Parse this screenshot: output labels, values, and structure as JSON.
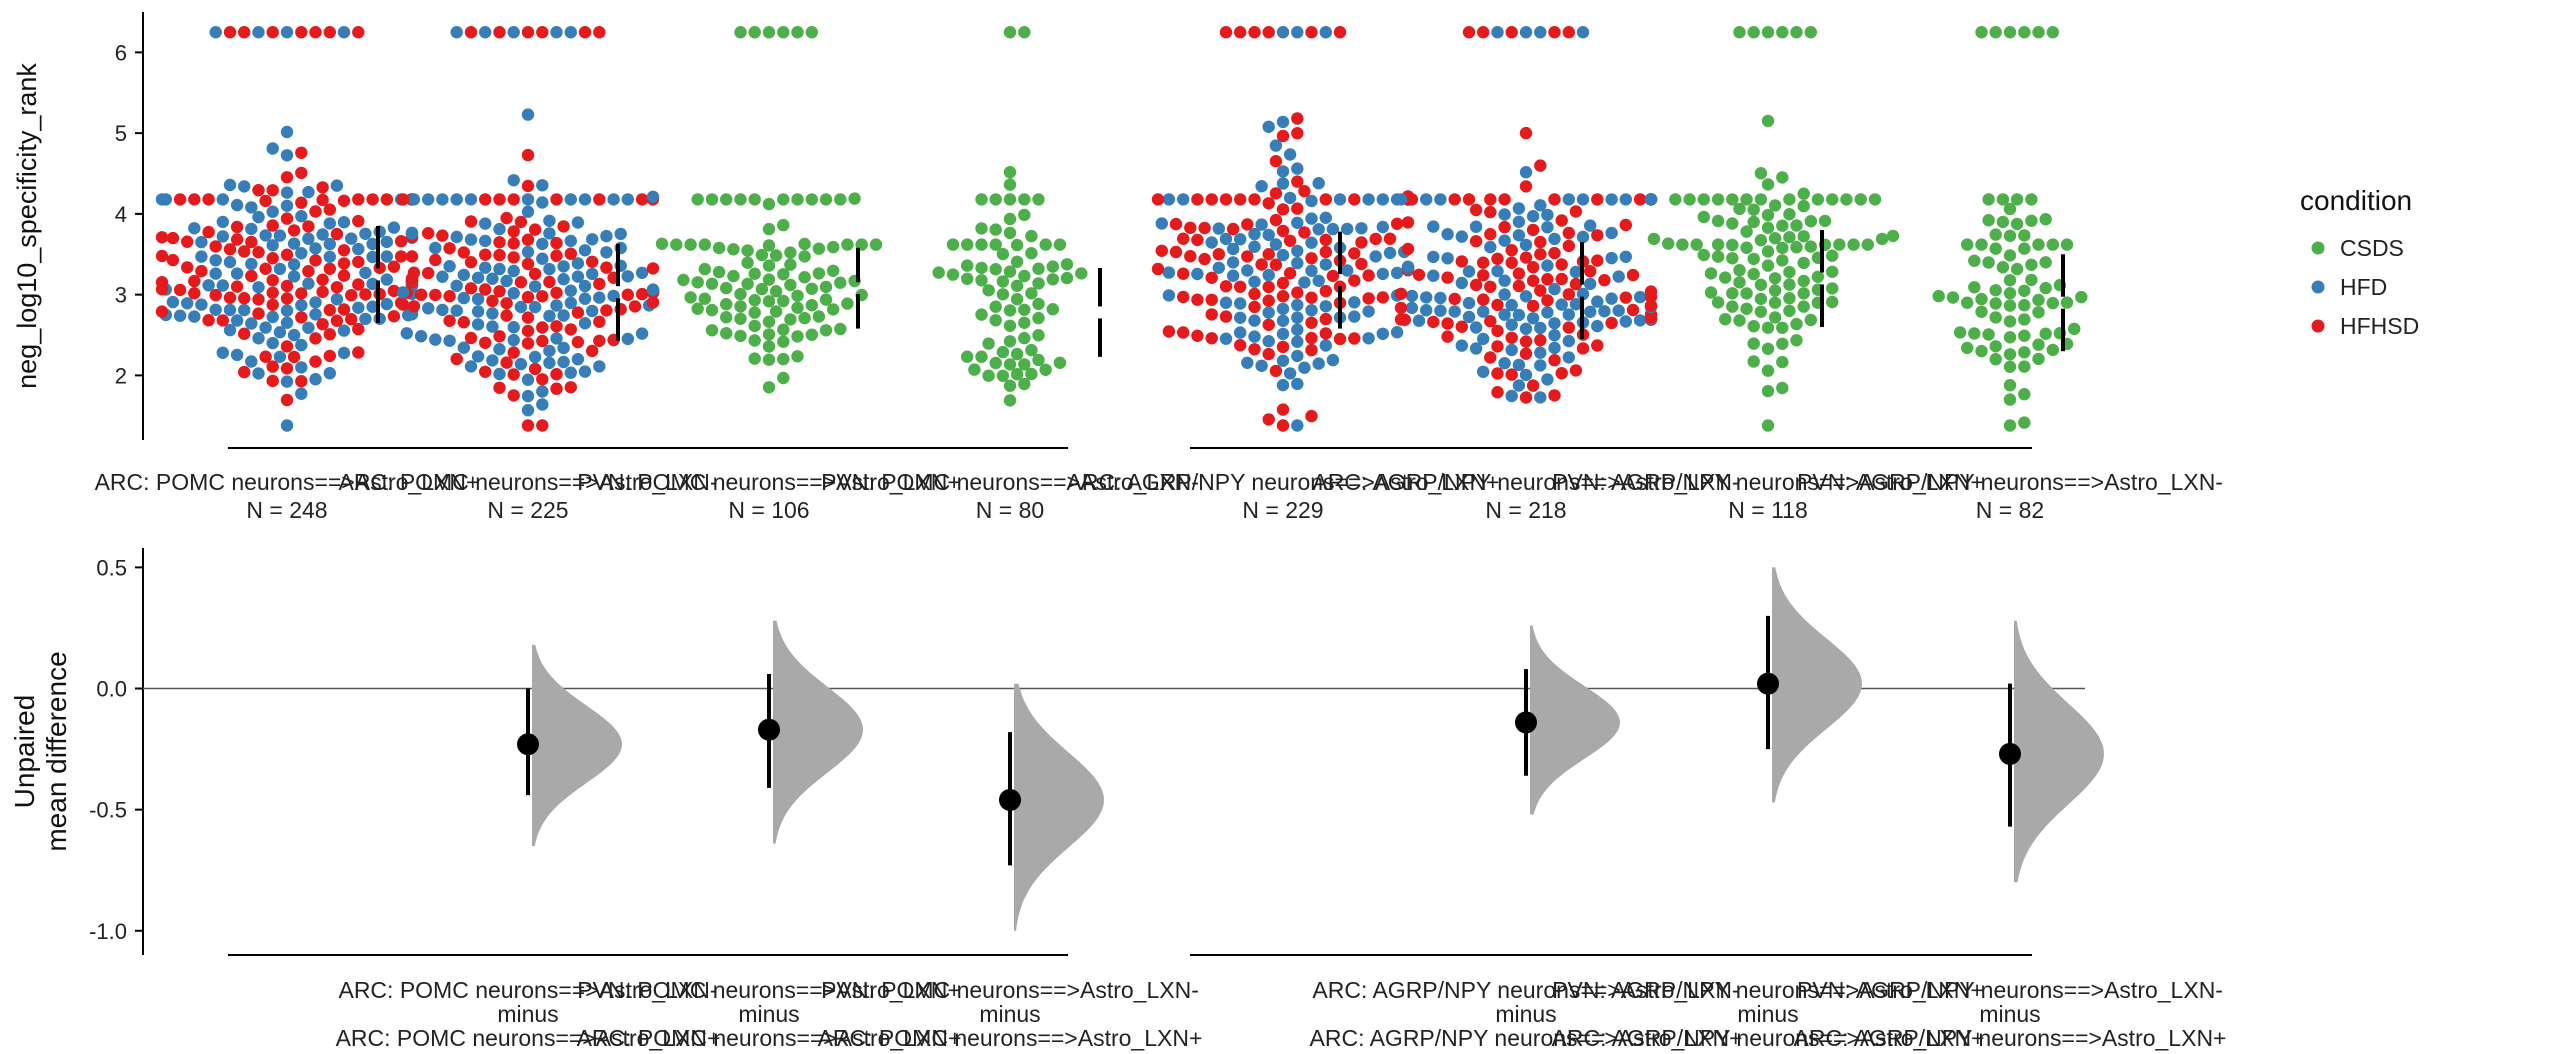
{
  "chart_data": [
    {
      "type": "scatter",
      "subtype": "swarm",
      "ylabel": "neg_log10_specificity_rank",
      "ylim": [
        1.2,
        6.5
      ],
      "yticks": [
        "2",
        "3",
        "4",
        "5",
        "6"
      ],
      "yticks_values": [
        2,
        3,
        4,
        5,
        6
      ],
      "grid": false,
      "groups": [
        {
          "name": "ARC: POMC neurons==>Astro_LXN+",
          "n_label": "N = 248",
          "n": 248,
          "palette": "mixed",
          "mean": 3.25,
          "sd": 0.6
        },
        {
          "name": "ARC: POMC neurons==>Astro_LXN-",
          "n_label": "N = 225",
          "n": 225,
          "palette": "mixed",
          "mean": 3.03,
          "sd": 0.6
        },
        {
          "name": "PVN: POMC neurons==>Astro_LXN+",
          "n_label": "N = 106",
          "n": 106,
          "palette": "green",
          "mean": 3.08,
          "sd": 0.5
        },
        {
          "name": "PVN: POMC neurons==>Astro_LXN-",
          "n_label": "N = 80",
          "n": 80,
          "palette": "green",
          "mean": 2.78,
          "sd": 0.55
        },
        {
          "name": "ARC: AGRP/NPY neurons==>Astro_LXN+",
          "n_label": "N = 229",
          "n": 229,
          "palette": "mixed",
          "mean": 3.18,
          "sd": 0.6
        },
        {
          "name": "ARC: AGRP/NPY neurons==>Astro_LXN-",
          "n_label": "N = 218",
          "n": 218,
          "palette": "mixed",
          "mean": 3.05,
          "sd": 0.6
        },
        {
          "name": "PVN: AGRP/NPY neurons==>Astro_LXN+",
          "n_label": "N = 118",
          "n": 118,
          "palette": "green",
          "mean": 3.2,
          "sd": 0.6
        },
        {
          "name": "PVN: AGRP/NPY neurons==>Astro_LXN-",
          "n_label": "N = 82",
          "n": 82,
          "palette": "green",
          "mean": 2.9,
          "sd": 0.6
        }
      ],
      "legend": {
        "title": "condition",
        "placement": "right",
        "entries": [
          {
            "name": "CSDS",
            "color": "#4daf4a"
          },
          {
            "name": "HFD",
            "color": "#377eb8"
          },
          {
            "name": "HFHSD",
            "color": "#e41a1c"
          }
        ]
      }
    },
    {
      "type": "scatter",
      "subtype": "estimation",
      "ylabel_lines": [
        "Unpaired",
        "mean difference"
      ],
      "ylim": [
        -1.1,
        0.58
      ],
      "yticks": [
        "-1.0",
        "-0.5",
        "0.0",
        "0.5"
      ],
      "yticks_values": [
        -1.0,
        -0.5,
        0.0,
        0.5
      ],
      "reference_line": 0,
      "comparisons": [
        {
          "group_index": 1,
          "label_top": "ARC: POMC neurons==>Astro_LXN-",
          "label_mid": "minus",
          "label_bottom": "ARC: POMC neurons==>Astro_LXN+",
          "estimate": -0.23,
          "ci": [
            -0.44,
            0.0
          ],
          "dist_range": [
            -0.65,
            0.18
          ]
        },
        {
          "group_index": 2,
          "label_top": "PVN: POMC neurons==>Astro_LXN+",
          "label_mid": "minus",
          "label_bottom": "ARC: POMC neurons==>Astro_LXN+",
          "estimate": -0.17,
          "ci": [
            -0.41,
            0.06
          ],
          "dist_range": [
            -0.64,
            0.28
          ]
        },
        {
          "group_index": 3,
          "label_top": "PVN: POMC neurons==>Astro_LXN-",
          "label_mid": "minus",
          "label_bottom": "ARC: POMC neurons==>Astro_LXN+",
          "estimate": -0.46,
          "ci": [
            -0.73,
            -0.18
          ],
          "dist_range": [
            -1.0,
            0.02
          ]
        },
        {
          "group_index": 5,
          "label_top": "ARC: AGRP/NPY neurons==>Astro_LXN-",
          "label_mid": "minus",
          "label_bottom": "ARC: AGRP/NPY neurons==>Astro_LXN+",
          "estimate": -0.14,
          "ci": [
            -0.36,
            0.08
          ],
          "dist_range": [
            -0.52,
            0.26
          ]
        },
        {
          "group_index": 6,
          "label_top": "PVN: AGRP/NPY neurons==>Astro_LXN+",
          "label_mid": "minus",
          "label_bottom": "ARC: AGRP/NPY neurons==>Astro_LXN+",
          "estimate": 0.02,
          "ci": [
            -0.25,
            0.3
          ],
          "dist_range": [
            -0.47,
            0.5
          ]
        },
        {
          "group_index": 7,
          "label_top": "PVN: AGRP/NPY neurons==>Astro_LXN-",
          "label_mid": "minus",
          "label_bottom": "ARC: AGRP/NPY neurons==>Astro_LXN+",
          "estimate": -0.27,
          "ci": [
            -0.57,
            0.02
          ],
          "dist_range": [
            -0.8,
            0.28
          ]
        }
      ]
    }
  ]
}
